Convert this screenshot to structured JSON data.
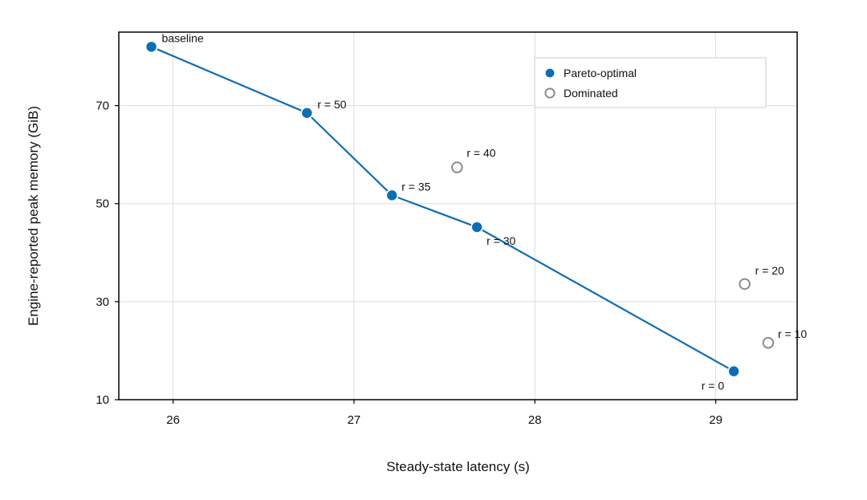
{
  "chart_data": {
    "type": "scatter",
    "xlabel": "Steady-state latency (s)",
    "ylabel": "Engine-reported peak memory (GiB)",
    "xlim": [
      25.7,
      29.45
    ],
    "ylim": [
      10,
      85
    ],
    "xticks": [
      26,
      27,
      28,
      29
    ],
    "yticks": [
      10,
      30,
      50,
      70
    ],
    "grid": true,
    "legend_position": "top-right",
    "colors": {
      "pareto": "#0a6eb4",
      "dominated": "#8c8c8c",
      "grid": "#dddddd",
      "axes": "#000000"
    },
    "series": [
      {
        "name": "Pareto-optimal",
        "style": "filled-circle-connected",
        "points": [
          {
            "x": 25.88,
            "y": 82.0,
            "label": "baseline"
          },
          {
            "x": 26.74,
            "y": 68.5,
            "label": "r = 50"
          },
          {
            "x": 27.21,
            "y": 51.7,
            "label": "r = 35"
          },
          {
            "x": 27.68,
            "y": 45.2,
            "label": "r = 30"
          },
          {
            "x": 29.1,
            "y": 15.8,
            "label": "r = 0"
          }
        ]
      },
      {
        "name": "Dominated",
        "style": "hollow-circle",
        "points": [
          {
            "x": 27.57,
            "y": 57.4,
            "label": "r = 40"
          },
          {
            "x": 29.16,
            "y": 33.6,
            "label": "r = 20"
          },
          {
            "x": 29.29,
            "y": 21.6,
            "label": "r = 10"
          }
        ]
      }
    ]
  }
}
